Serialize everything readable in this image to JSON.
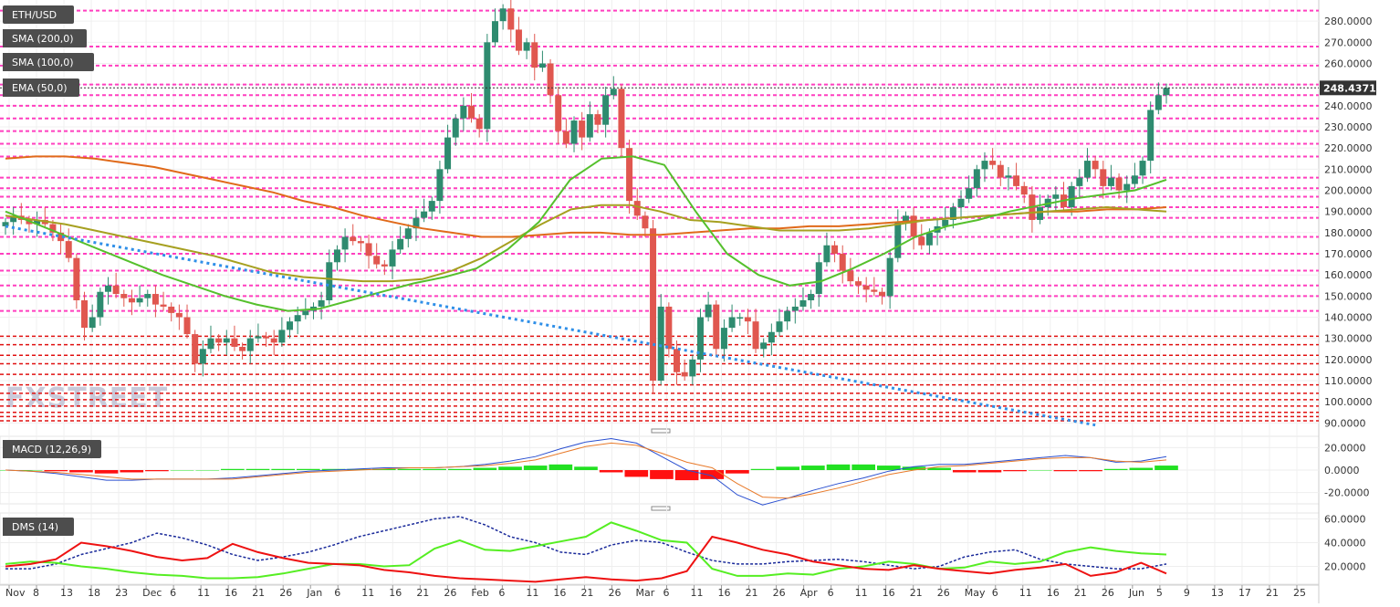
{
  "instrument": "ETH/USD",
  "price_tag": "248.43716",
  "watermark": "FXSTREET",
  "colors": {
    "bull": "#2e8b6f",
    "bear": "#e0574f",
    "sma200": "#e06a1a",
    "sma100": "#a6a020",
    "ema50": "#55c02c",
    "trendline": "#2f8fe8",
    "level_upper": "#ff3fbf",
    "level_lower": "#e01010",
    "macd_line": "#2a4fd0",
    "signal_line": "#e87a2a",
    "hist_pos": "#22e022",
    "hist_neg": "#ff1010",
    "dmi_plus": "#55ee22",
    "dmi_minus": "#ee1111",
    "adx": "#1a2a9a"
  },
  "indicators": {
    "sma200": "SMA (200,0)",
    "sma100": "SMA (100,0)",
    "ema50": "EMA (50,0)",
    "macd": "MACD (12,26,9)",
    "dms": "DMS (14)"
  },
  "chart_data": [
    {
      "type": "candlestick",
      "title": "ETH/USD",
      "ylim": [
        88,
        290
      ],
      "y_ticks": [
        "280.0000",
        "270.0000",
        "260.0000",
        "250.0000",
        "240.0000",
        "230.0000",
        "220.0000",
        "210.0000",
        "200.0000",
        "190.0000",
        "180.0000",
        "170.0000",
        "160.0000",
        "150.0000",
        "140.0000",
        "130.0000",
        "120.0000",
        "110.0000",
        "100.0000",
        "90.0000"
      ],
      "x_ticks": [
        "Nov",
        "8",
        "13",
        "18",
        "23",
        "Dec",
        "6",
        "11",
        "16",
        "21",
        "26",
        "Jan",
        "6",
        "11",
        "16",
        "21",
        "26",
        "Feb",
        "6",
        "11",
        "16",
        "21",
        "26",
        "Mar",
        "6",
        "11",
        "16",
        "21",
        "26",
        "Apr",
        "6",
        "11",
        "16",
        "21",
        "26",
        "May",
        "6",
        "11",
        "16",
        "21",
        "26",
        "Jun",
        "5",
        "9",
        "13",
        "17",
        "21",
        "25"
      ],
      "closes": [
        185,
        188,
        186,
        184,
        186,
        184,
        180,
        176,
        168,
        148,
        135,
        140,
        152,
        155,
        151,
        149,
        147,
        149,
        151,
        146,
        145,
        142,
        140,
        132,
        118,
        125,
        130,
        128,
        130,
        126,
        124,
        130,
        131,
        130,
        128,
        134,
        138,
        141,
        143,
        145,
        148,
        166,
        172,
        178,
        176,
        175,
        169,
        165,
        164,
        172,
        177,
        182,
        187,
        190,
        195,
        210,
        225,
        234,
        240,
        234,
        229,
        270,
        280,
        286,
        276,
        266,
        270,
        258,
        260,
        245,
        228,
        222,
        233,
        225,
        236,
        231,
        245,
        248,
        220,
        195,
        188,
        182,
        110,
        145,
        125,
        114,
        112,
        120,
        140,
        146,
        125,
        135,
        140,
        140,
        138,
        125,
        128,
        133,
        138,
        143,
        145,
        148,
        151,
        166,
        174,
        170,
        162,
        157,
        155,
        153,
        152,
        150,
        168,
        185,
        188,
        178,
        174,
        180,
        183,
        186,
        192,
        196,
        201,
        210,
        214,
        212,
        206,
        207,
        202,
        198,
        186,
        192,
        196,
        198,
        192,
        202,
        206,
        214,
        210,
        202,
        206,
        200,
        203,
        207,
        214,
        238,
        245,
        248.44
      ],
      "supports_resistances_upper": [
        285,
        268,
        259,
        250,
        245,
        240,
        234,
        228,
        222,
        216,
        206,
        201,
        197,
        192,
        187,
        178,
        170,
        162,
        155,
        150,
        143
      ],
      "supports_resistances_lower": [
        131,
        127,
        122,
        118,
        113,
        108,
        104,
        101,
        98,
        95,
        93,
        91
      ],
      "sma200": [
        215,
        216,
        216,
        215,
        213,
        211,
        208,
        205,
        202,
        199,
        195,
        192,
        188,
        185,
        182,
        180,
        178,
        178,
        179,
        180,
        180,
        179,
        179,
        180,
        181,
        182,
        182,
        183,
        183,
        184,
        185,
        186,
        187,
        188,
        189,
        190,
        190,
        191,
        191,
        192
      ],
      "sma100": [
        188,
        186,
        184,
        181,
        178,
        175,
        172,
        169,
        165,
        161,
        159,
        158,
        157,
        157,
        158,
        162,
        168,
        176,
        184,
        191,
        193,
        193,
        190,
        186,
        185,
        183,
        181,
        181,
        181,
        182,
        184,
        186,
        187,
        188,
        189,
        190,
        191,
        192,
        191,
        190
      ],
      "ema50": [
        190,
        184,
        178,
        172,
        166,
        160,
        155,
        150,
        146,
        143,
        144,
        148,
        152,
        156,
        159,
        163,
        172,
        185,
        205,
        215,
        216,
        212,
        190,
        170,
        160,
        155,
        157,
        163,
        170,
        178,
        183,
        186,
        190,
        193,
        196,
        198,
        200,
        205
      ],
      "trendline": {
        "from": [
          0,
          183
        ],
        "to": [
          138,
          89
        ]
      },
      "last_price": 248.44
    },
    {
      "type": "macd",
      "title": "MACD (12,26,9)",
      "ylim": [
        -30,
        30
      ],
      "y_ticks": [
        "20.0000",
        "0.0000",
        "-20.0000"
      ],
      "macd": [
        0,
        -1,
        -3,
        -6,
        -9,
        -9,
        -8,
        -8,
        -8,
        -7,
        -5,
        -3,
        -1,
        0,
        1,
        2,
        2,
        2,
        3,
        5,
        8,
        12,
        19,
        25,
        28,
        24,
        12,
        0,
        -5,
        -22,
        -31,
        -25,
        -18,
        -12,
        -7,
        -1,
        3,
        5,
        5,
        7,
        9,
        11,
        13,
        11,
        7,
        8,
        12
      ],
      "signal": [
        0,
        -1,
        -2,
        -4,
        -6,
        -8,
        -8,
        -8,
        -8,
        -8,
        -6,
        -4,
        -2,
        -1,
        0,
        1,
        2,
        2,
        3,
        4,
        6,
        9,
        15,
        21,
        24,
        22,
        15,
        7,
        2,
        -12,
        -24,
        -25,
        -21,
        -16,
        -10,
        -4,
        0,
        3,
        4,
        6,
        8,
        10,
        11,
        11,
        8,
        7,
        9
      ],
      "histogram": [
        0,
        0,
        -1,
        -2,
        -3,
        -2,
        -1,
        0,
        0,
        1,
        1,
        1,
        1,
        1,
        1,
        1,
        1,
        1,
        1,
        2,
        3,
        4,
        5,
        3,
        -2,
        -6,
        -8,
        -9,
        -8,
        -3,
        1,
        3,
        4,
        5,
        5,
        4,
        3,
        2,
        -2,
        -2,
        -1,
        0,
        -1,
        -1,
        1,
        2,
        4
      ]
    },
    {
      "type": "line",
      "title": "DMS (14)",
      "ylim": [
        5,
        65
      ],
      "y_ticks": [
        "60.0000",
        "40.0000",
        "20.0000"
      ],
      "dmi_plus": [
        22,
        24,
        23,
        20,
        18,
        15,
        13,
        12,
        10,
        10,
        11,
        14,
        18,
        22,
        22,
        20,
        21,
        35,
        42,
        34,
        33,
        37,
        41,
        45,
        57,
        50,
        42,
        40,
        18,
        12,
        12,
        14,
        13,
        18,
        20,
        24,
        22,
        18,
        19,
        24,
        22,
        24,
        32,
        36,
        33,
        31,
        30
      ],
      "dmi_minus": [
        20,
        22,
        26,
        40,
        37,
        33,
        28,
        25,
        27,
        39,
        32,
        27,
        23,
        22,
        21,
        17,
        15,
        12,
        10,
        9,
        8,
        7,
        9,
        11,
        9,
        8,
        10,
        16,
        45,
        40,
        34,
        30,
        24,
        21,
        18,
        17,
        21,
        18,
        16,
        14,
        17,
        19,
        22,
        12,
        15,
        23,
        14
      ],
      "adx": [
        18,
        18,
        22,
        30,
        35,
        40,
        48,
        44,
        38,
        30,
        25,
        28,
        32,
        38,
        45,
        50,
        55,
        60,
        62,
        55,
        45,
        40,
        32,
        30,
        38,
        42,
        40,
        32,
        25,
        22,
        22,
        24,
        25,
        26,
        24,
        21,
        18,
        20,
        28,
        32,
        34,
        26,
        22,
        20,
        18,
        18,
        22
      ]
    }
  ]
}
